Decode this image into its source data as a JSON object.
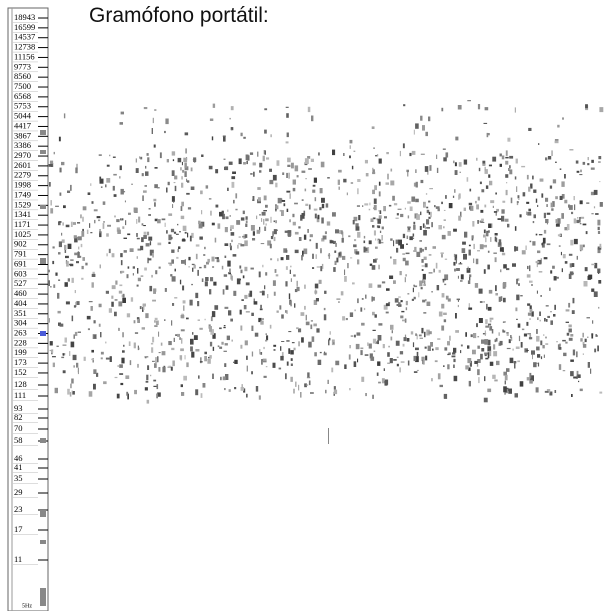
{
  "header": {
    "title": "Gramófono portátil:"
  },
  "frequency_axis": {
    "labels": [
      "18943",
      "16599",
      "14537",
      "12738",
      "11156",
      "9773",
      "8560",
      "7500",
      "6568",
      "5753",
      "5044",
      "4417",
      "3867",
      "3386",
      "2970",
      "2601",
      "2279",
      "1998",
      "1749",
      "1529",
      "1341",
      "1171",
      "1025",
      "902",
      "791",
      "691",
      "603",
      "527",
      "460",
      "404",
      "351",
      "304",
      "263",
      "228",
      "199",
      "173",
      "152",
      "128",
      "111",
      "93",
      "82",
      "70",
      "58",
      "46",
      "41",
      "35",
      "29",
      "23",
      "17",
      "11"
    ],
    "unit_label": "5Hz"
  }
}
